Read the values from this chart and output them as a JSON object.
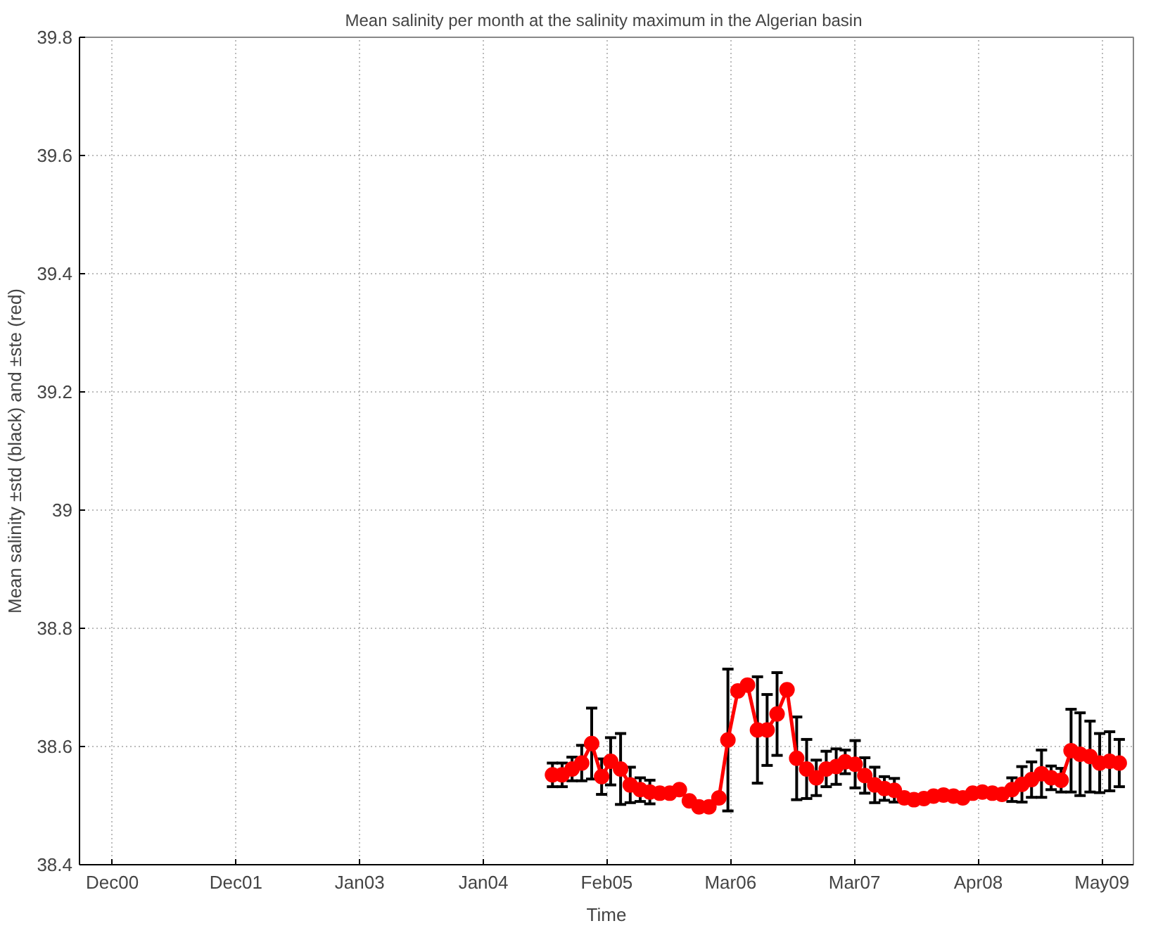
{
  "chart_data": {
    "type": "line",
    "title": "Mean salinity per month at the salinity maximum in the  Algerian basin",
    "xlabel": "Time",
    "ylabel": "Mean salinity ±std (black) and ±ste (red)",
    "x": [
      "2004-09",
      "2004-10",
      "2004-11",
      "2004-12",
      "2005-01",
      "2005-02",
      "2005-03",
      "2005-04",
      "2005-05",
      "2005-06",
      "2005-07",
      "2005-08",
      "2005-09",
      "2005-10",
      "2005-11",
      "2005-12",
      "2006-01",
      "2006-02",
      "2006-03",
      "2006-04",
      "2006-05",
      "2006-06",
      "2006-07",
      "2006-08",
      "2006-09",
      "2006-10",
      "2006-11",
      "2006-12",
      "2007-01",
      "2007-02",
      "2007-03",
      "2007-04",
      "2007-05",
      "2007-06",
      "2007-07",
      "2007-08",
      "2007-09",
      "2007-10",
      "2007-11",
      "2007-12",
      "2008-01",
      "2008-02",
      "2008-03",
      "2008-04",
      "2008-05",
      "2008-06",
      "2008-07",
      "2008-08",
      "2008-09",
      "2008-10",
      "2008-11",
      "2008-12",
      "2009-01",
      "2009-02",
      "2009-03",
      "2009-04",
      "2009-05",
      "2009-06",
      "2009-07"
    ],
    "series": [
      {
        "color": "#ff0000",
        "values": [
          38.552,
          38.552,
          38.562,
          38.572,
          38.605,
          38.549,
          38.575,
          38.562,
          38.535,
          38.527,
          38.523,
          38.521,
          38.521,
          38.527,
          38.508,
          38.498,
          38.498,
          38.513,
          38.611,
          38.694,
          38.704,
          38.628,
          38.628,
          38.655,
          38.696,
          38.58,
          38.562,
          38.547,
          38.562,
          38.566,
          38.574,
          38.57,
          38.551,
          38.535,
          38.529,
          38.526,
          38.513,
          38.51,
          38.512,
          38.516,
          38.518,
          38.516,
          38.513,
          38.521,
          38.523,
          38.521,
          38.519,
          38.527,
          38.536,
          38.544,
          38.554,
          38.547,
          38.543,
          38.593,
          38.587,
          38.583,
          38.572,
          38.575,
          38.572
        ],
        "errors": [
          0.02,
          0.02,
          0.02,
          0.03,
          0.06,
          0.03,
          0.04,
          0.06,
          0.03,
          0.02,
          0.02,
          null,
          null,
          null,
          null,
          null,
          null,
          null,
          0.12,
          null,
          null,
          0.09,
          0.06,
          0.07,
          null,
          0.07,
          0.05,
          0.03,
          0.03,
          0.03,
          0.02,
          0.04,
          0.03,
          0.03,
          0.02,
          0.02,
          null,
          null,
          null,
          null,
          null,
          null,
          null,
          null,
          null,
          null,
          null,
          0.02,
          0.03,
          0.03,
          0.04,
          0.02,
          0.02,
          0.07,
          0.07,
          0.06,
          0.05,
          0.05,
          0.04
        ]
      }
    ],
    "xlim": [
      "2000-08-21",
      "2009-08-14"
    ],
    "xticks": [
      {
        "value": "2000-12-01",
        "label": "Dec00"
      },
      {
        "value": "2001-12-21",
        "label": "Dec01"
      },
      {
        "value": "2003-01-10",
        "label": "Jan03"
      },
      {
        "value": "2004-01-30",
        "label": "Jan04"
      },
      {
        "value": "2005-02-17",
        "label": "Feb05"
      },
      {
        "value": "2006-03-09",
        "label": "Mar06"
      },
      {
        "value": "2007-03-30",
        "label": "Mar07"
      },
      {
        "value": "2008-04-18",
        "label": "Apr08"
      },
      {
        "value": "2009-05-08",
        "label": "May09"
      }
    ],
    "ylim": [
      38.4,
      39.8
    ],
    "yticks": [
      38.4,
      38.6,
      38.8,
      39,
      39.2,
      39.4,
      39.6,
      39.8
    ],
    "grid": true,
    "marker": "circle",
    "line_style": "solid"
  }
}
